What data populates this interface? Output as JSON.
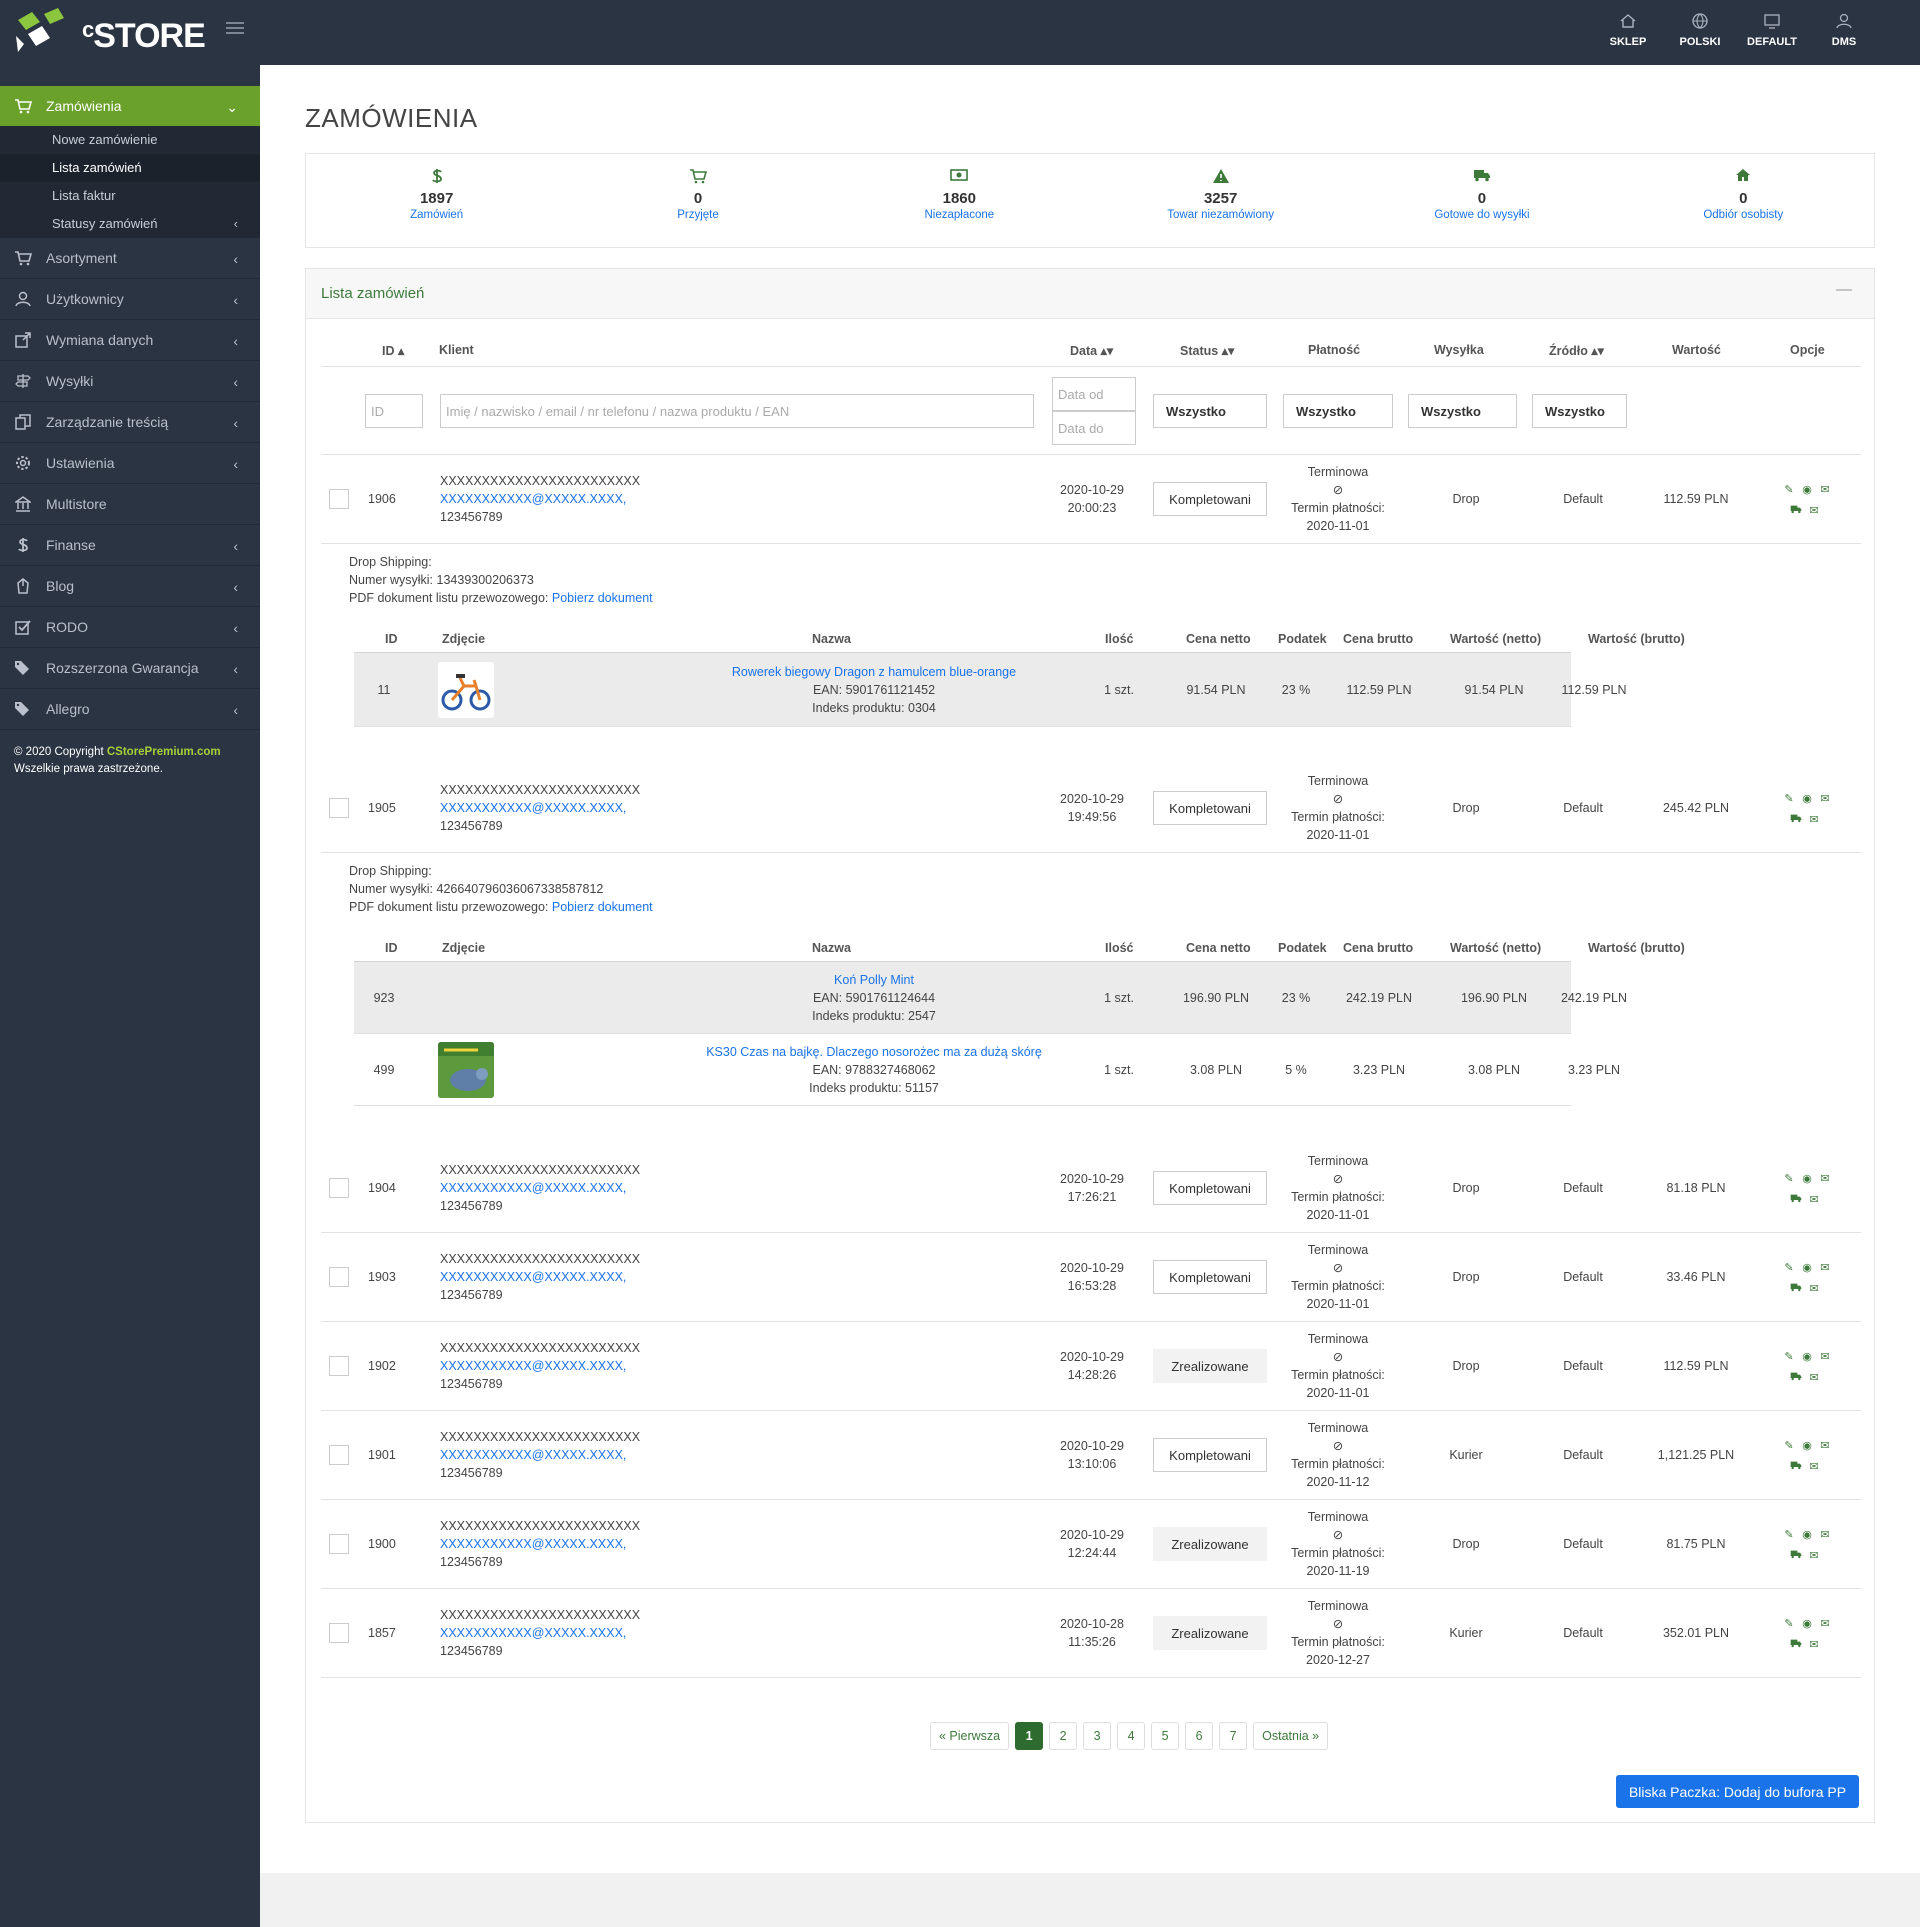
{
  "brand": {
    "name": "STORE",
    "prefix": "c"
  },
  "topnav": [
    {
      "label": "SKLEP",
      "icon": "home-icon"
    },
    {
      "label": "POLSKI",
      "icon": "globe-icon"
    },
    {
      "label": "DEFAULT",
      "icon": "monitor-icon"
    },
    {
      "label": "DMS",
      "icon": "user-icon"
    }
  ],
  "sidebar": {
    "active": {
      "label": "Zamówienia",
      "icon": "cart-icon"
    },
    "sub": [
      "Nowe zamówienie",
      "Lista zamówień",
      "Lista faktur",
      "Statusy zamówień"
    ],
    "items": [
      {
        "label": "Asortyment",
        "icon": "cart-icon"
      },
      {
        "label": "Użytkownicy",
        "icon": "user-icon"
      },
      {
        "label": "Wymiana danych",
        "icon": "external-link-icon"
      },
      {
        "label": "Wysyłki",
        "icon": "signpost-icon"
      },
      {
        "label": "Zarządzanie treścią",
        "icon": "copy-icon"
      },
      {
        "label": "Ustawienia",
        "icon": "gear-icon"
      },
      {
        "label": "Multistore",
        "icon": "bank-icon"
      },
      {
        "label": "Finanse",
        "icon": "dollar-icon"
      },
      {
        "label": "Blog",
        "icon": "pen-icon"
      },
      {
        "label": "RODO",
        "icon": "checkbox-icon"
      },
      {
        "label": "Rozszerzona Gwarancja",
        "icon": "tags-icon"
      },
      {
        "label": "Allegro",
        "icon": "tag-icon"
      }
    ],
    "copyright_prefix": "© 2020 Copyright ",
    "copyright_brand": "CStorePremium.com",
    "copyright_suffix": "Wszelkie prawa zastrzeżone."
  },
  "page": {
    "title": "ZAMÓWIENIA",
    "stats": [
      {
        "value": "1897",
        "label": "Zamówień",
        "icon": "dollar-icon"
      },
      {
        "value": "0",
        "label": "Przyjęte",
        "icon": "cart-icon"
      },
      {
        "value": "1860",
        "label": "Niezapłacone",
        "icon": "money-icon"
      },
      {
        "value": "3257",
        "label": "Towar niezamówiony",
        "icon": "warning-icon"
      },
      {
        "value": "0",
        "label": "Gotowe do wysyłki",
        "icon": "truck-icon"
      },
      {
        "value": "0",
        "label": "Odbiór osobisty",
        "icon": "home-icon"
      }
    ]
  },
  "panel": {
    "title": "Lista zamówień",
    "minimize": "—",
    "headers": {
      "id": "ID",
      "client": "Klient",
      "date": "Data",
      "status": "Status",
      "payment": "Płatność",
      "shipping": "Wysyłka",
      "source": "Źródło",
      "value": "Wartość",
      "options": "Opcje"
    },
    "filters": {
      "id_placeholder": "ID",
      "search_placeholder": "Imię / nazwisko / email / nr telefonu / nazwa produktu / EAN",
      "date_from": "Data od",
      "date_to": "Data do",
      "status": "Wszystko",
      "payment": "Wszystko",
      "shipping": "Wszystko",
      "source": "Wszystko"
    }
  },
  "orders": [
    {
      "id": "1906",
      "name": "XXXXXXXXXXXXXXXXXXXXXXXX",
      "email": "XXXXXXXXXXX@XXXXX.XXXX,",
      "phone": "123456789",
      "date": "2020-10-29",
      "time": "20:00:23",
      "status": "Kompletowani",
      "pay_type": "Terminowa",
      "pay_term_label": "Termin płatności:",
      "pay_term": "2020-11-01",
      "shipping": "Drop",
      "source": "Default",
      "value": "112.59 PLN"
    },
    {
      "id": "1905",
      "name": "XXXXXXXXXXXXXXXXXXXXXXXX",
      "email": "XXXXXXXXXXX@XXXXX.XXXX,",
      "phone": "123456789",
      "date": "2020-10-29",
      "time": "19:49:56",
      "status": "Kompletowani",
      "pay_type": "Terminowa",
      "pay_term_label": "Termin płatności:",
      "pay_term": "2020-11-01",
      "shipping": "Drop",
      "source": "Default",
      "value": "245.42 PLN"
    },
    {
      "id": "1904",
      "name": "XXXXXXXXXXXXXXXXXXXXXXXX",
      "email": "XXXXXXXXXXX@XXXXX.XXXX,",
      "phone": "123456789",
      "date": "2020-10-29",
      "time": "17:26:21",
      "status": "Kompletowani",
      "pay_type": "Terminowa",
      "pay_term_label": "Termin płatności:",
      "pay_term": "2020-11-01",
      "shipping": "Drop",
      "source": "Default",
      "value": "81.18 PLN"
    },
    {
      "id": "1903",
      "name": "XXXXXXXXXXXXXXXXXXXXXXXX",
      "email": "XXXXXXXXXXX@XXXXX.XXXX,",
      "phone": "123456789",
      "date": "2020-10-29",
      "time": "16:53:28",
      "status": "Kompletowani",
      "pay_type": "Terminowa",
      "pay_term_label": "Termin płatności:",
      "pay_term": "2020-11-01",
      "shipping": "Drop",
      "source": "Default",
      "value": "33.46 PLN"
    },
    {
      "id": "1902",
      "name": "XXXXXXXXXXXXXXXXXXXXXXXX",
      "email": "XXXXXXXXXXX@XXXXX.XXXX,",
      "phone": "123456789",
      "date": "2020-10-29",
      "time": "14:28:26",
      "status": "Zrealizowane",
      "pay_type": "Terminowa",
      "pay_term_label": "Termin płatności:",
      "pay_term": "2020-11-01",
      "shipping": "Drop",
      "source": "Default",
      "value": "112.59 PLN"
    },
    {
      "id": "1901",
      "name": "XXXXXXXXXXXXXXXXXXXXXXXX",
      "email": "XXXXXXXXXXX@XXXXX.XXXX,",
      "phone": "123456789",
      "date": "2020-10-29",
      "time": "13:10:06",
      "status": "Kompletowani",
      "pay_type": "Terminowa",
      "pay_term_label": "Termin płatności:",
      "pay_term": "2020-11-12",
      "shipping": "Kurier",
      "source": "Default",
      "value": "1,121.25 PLN"
    },
    {
      "id": "1900",
      "name": "XXXXXXXXXXXXXXXXXXXXXXXX",
      "email": "XXXXXXXXXXX@XXXXX.XXXX,",
      "phone": "123456789",
      "date": "2020-10-29",
      "time": "12:24:44",
      "status": "Zrealizowane",
      "pay_type": "Terminowa",
      "pay_term_label": "Termin płatności:",
      "pay_term": "2020-11-19",
      "shipping": "Drop",
      "source": "Default",
      "value": "81.75 PLN"
    },
    {
      "id": "1857",
      "name": "XXXXXXXXXXXXXXXXXXXXXXXX",
      "email": "XXXXXXXXXXX@XXXXX.XXXX,",
      "phone": "123456789",
      "date": "2020-10-28",
      "time": "11:35:26",
      "status": "Zrealizowane",
      "pay_type": "Terminowa",
      "pay_term_label": "Termin płatności:",
      "pay_term": "2020-12-27",
      "shipping": "Kurier",
      "source": "Default",
      "value": "352.01 PLN"
    }
  ],
  "shipments": [
    {
      "line1": "Drop Shipping:",
      "number_label": "Numer wysyłki: ",
      "number": "13439300206373",
      "pdf_label": "PDF dokument listu przewozowego: ",
      "pdf_link": "Pobierz dokument"
    },
    {
      "line1": "Drop Shipping:",
      "number_label": "Numer wysyłki: ",
      "number": "42664079603606733858781​2",
      "pdf_label": "PDF dokument listu przewozowego: ",
      "pdf_link": "Pobierz dokument"
    }
  ],
  "product_headers": {
    "id": "ID",
    "photo": "Zdjęcie",
    "name": "Nazwa",
    "qty": "Ilość",
    "net": "Cena netto",
    "tax": "Podatek",
    "gross": "Cena brutto",
    "val_net": "Wartość (netto)",
    "val_gross": "Wartość (brutto)"
  },
  "products": [
    {
      "id": "11",
      "name": "Rowerek biegowy Dragon z hamulcem blue-orange",
      "ean": "EAN: 5901761121452",
      "index": "Indeks produktu: 0304",
      "qty": "1 szt.",
      "net": "91.54 PLN",
      "tax": "23 %",
      "gross": "112.59 PLN",
      "val_net": "91.54 PLN",
      "val_gross": "112.59 PLN"
    },
    {
      "id": "923",
      "name": "Koń Polly Mint",
      "ean": "EAN: 5901761124644",
      "index": "Indeks produktu: 2547",
      "qty": "1 szt.",
      "net": "196.90 PLN",
      "tax": "23 %",
      "gross": "242.19 PLN",
      "val_net": "196.90 PLN",
      "val_gross": "242.19 PLN"
    },
    {
      "id": "499",
      "name": "KS30 Czas na bajkę. Dlaczego nosorożec ma za dużą skórę",
      "ean": "EAN: 9788327468062",
      "index": "Indeks produktu: 51157",
      "qty": "1 szt.",
      "net": "3.08 PLN",
      "tax": "5 %",
      "gross": "3.23 PLN",
      "val_net": "3.08 PLN",
      "val_gross": "3.23 PLN"
    }
  ],
  "pagination": {
    "first": "« Pierwsza",
    "pages": [
      "1",
      "2",
      "3",
      "4",
      "5",
      "6",
      "7"
    ],
    "current": "1",
    "last": "Ostatnia »"
  },
  "button_pp": "Bliska Paczka: Dodaj do bufora PP",
  "colors": {
    "sidebar": "#2b3442",
    "active": "#6aa12a",
    "accent": "#3d7a3a",
    "link": "#1a73e8"
  }
}
